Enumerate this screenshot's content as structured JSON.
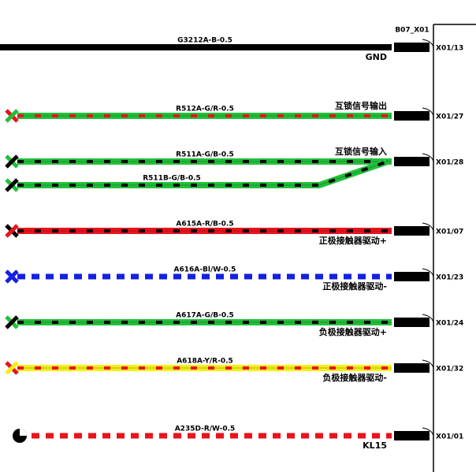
{
  "connector": "B07_X01",
  "wires": [
    {
      "label": "G3212A-B-0.5",
      "signal": "GND",
      "pin": "X01/13"
    },
    {
      "label": "R512A-G/R-0.5",
      "signal": "互锁信号输出",
      "pin": "X01/27"
    },
    {
      "label": "R511A-G/B-0.5",
      "signal": "互锁信号输入",
      "pin": "X01/28"
    },
    {
      "label": "R511B-G/B-0.5"
    },
    {
      "label": "A615A-R/B-0.5",
      "signal": "正极接触器驱动+",
      "pin": "X01/07"
    },
    {
      "label": "A616A-Bl/W-0.5",
      "signal": "正极接触器驱动-",
      "pin": "X01/23"
    },
    {
      "label": "A617A-G/B-0.5",
      "signal": "负极接触器驱动+",
      "pin": "X01/24"
    },
    {
      "label": "A618A-Y/R-0.5",
      "signal": "负极接触器驱动-",
      "pin": "X01/32"
    },
    {
      "label": "A235D-R/W-0.5",
      "signal": "KL15",
      "pin": "X01/01"
    }
  ]
}
